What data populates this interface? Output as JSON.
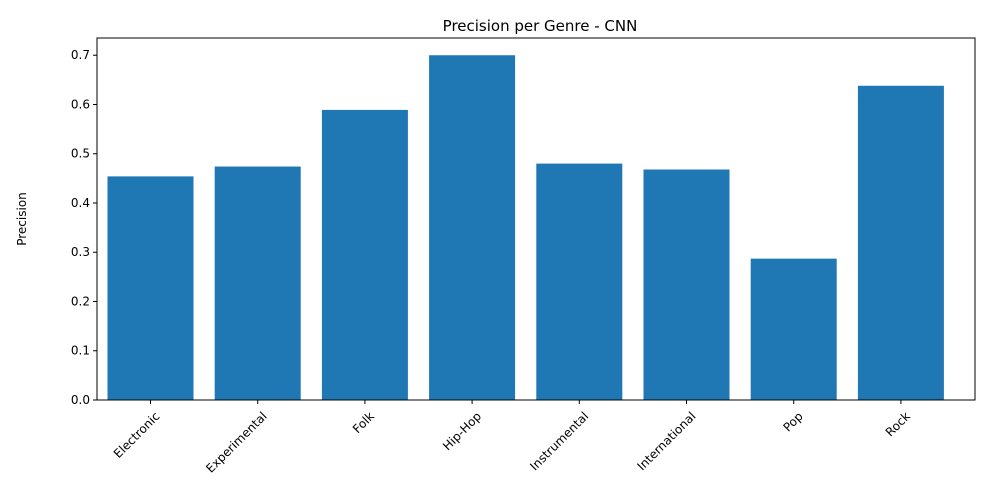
{
  "chart_data": {
    "type": "bar",
    "title": "Precision per Genre - CNN",
    "xlabel": "",
    "ylabel": "Precision",
    "categories": [
      "Electronic",
      "Experimental",
      "Folk",
      "Hip-Hop",
      "Instrumental",
      "International",
      "Pop",
      "Rock"
    ],
    "values": [
      0.454,
      0.474,
      0.589,
      0.7,
      0.48,
      0.468,
      0.287,
      0.638
    ],
    "ylim": [
      0,
      0.735
    ],
    "yticks": [
      0.0,
      0.1,
      0.2,
      0.3,
      0.4,
      0.5,
      0.6,
      0.7
    ],
    "ytick_labels": [
      "0.0",
      "0.1",
      "0.2",
      "0.3",
      "0.4",
      "0.5",
      "0.6",
      "0.7"
    ],
    "bar_color": "#1f77b4",
    "grid": false,
    "legend": "none"
  }
}
